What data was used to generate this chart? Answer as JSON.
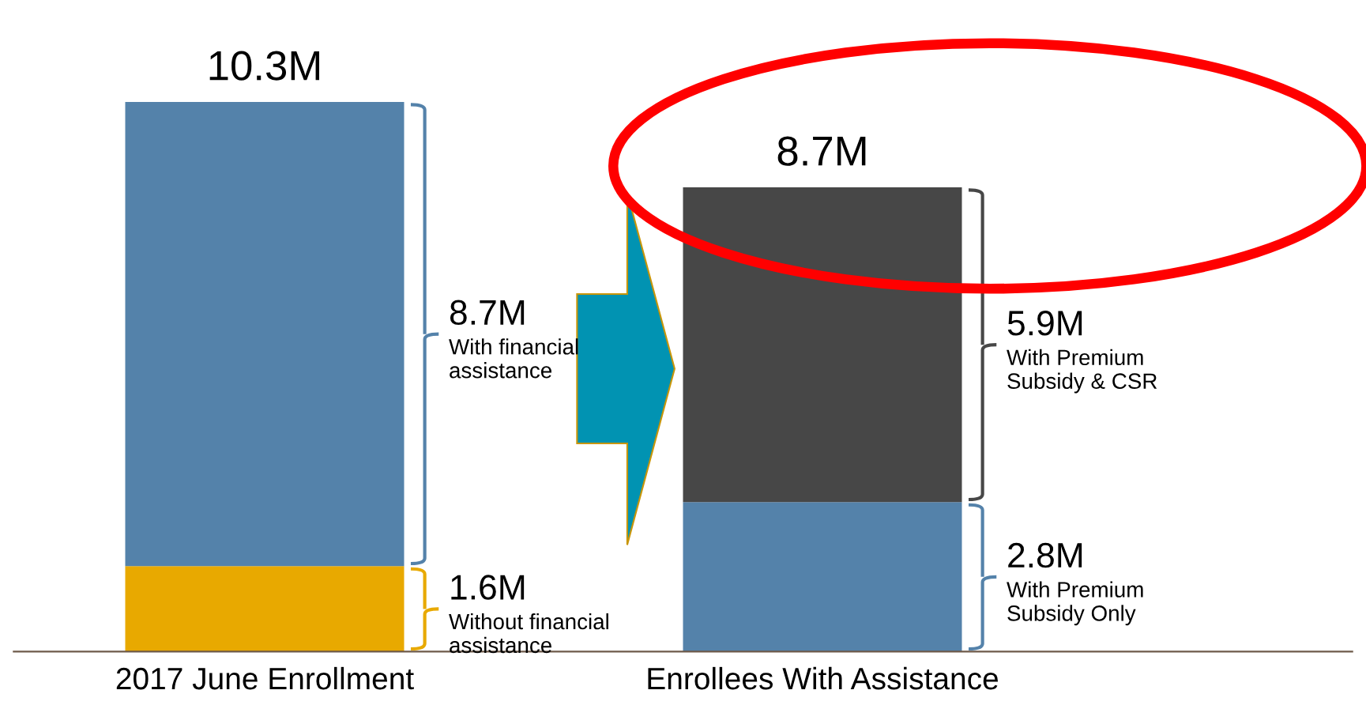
{
  "chart_data": {
    "type": "bar",
    "stacked": true,
    "categories": [
      "2017 June Enrollment",
      "Enrollees With Assistance"
    ],
    "series": [
      {
        "colors": [
          "#e8a900",
          "#5482aa"
        ],
        "values": [
          1.6,
          2.8
        ],
        "value_labels": [
          "1.6M",
          "2.8M"
        ]
      },
      {
        "colors": [
          "#5482aa",
          "#474747"
        ],
        "values": [
          8.7,
          5.9
        ],
        "value_labels": [
          "8.7M",
          "5.9M"
        ]
      }
    ],
    "totals": [
      "10.3M",
      "8.7M"
    ],
    "tick_labels": "x",
    "grid": false,
    "legend": false,
    "annotations": [
      "Without financial\nassistance",
      "With Premium\nSubsidy Only",
      "With financial\nassistance",
      "With Premium\nSubsidy & CSR"
    ]
  }
}
